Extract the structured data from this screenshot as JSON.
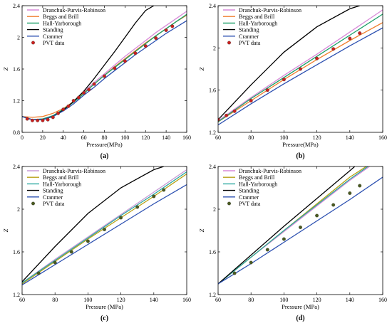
{
  "chart_data": [
    {
      "type": "line",
      "label": "(a)",
      "xlabel": "Pressure(MPa)",
      "ylabel": "Z",
      "xlim": [
        0,
        160
      ],
      "ylim": [
        0.8,
        2.4
      ],
      "xticks": [
        0,
        20,
        40,
        60,
        80,
        100,
        120,
        140,
        160
      ],
      "yticks": [
        0.8,
        1.2,
        1.6,
        2.0,
        2.4
      ],
      "ytick_labels": [
        "0.8",
        "1.2",
        "1.6",
        "2",
        "2.4"
      ],
      "legend": "top-left",
      "grid": false,
      "series": [
        {
          "name": "Dranchuk-Purvis-Robinson",
          "color": "#d98ad9",
          "x": [
            0,
            10,
            20,
            30,
            40,
            50,
            60,
            70,
            80,
            90,
            100,
            110,
            120,
            130,
            140,
            150,
            160
          ],
          "y": [
            1.0,
            0.96,
            0.97,
            1.01,
            1.09,
            1.19,
            1.31,
            1.43,
            1.54,
            1.65,
            1.76,
            1.86,
            1.96,
            2.06,
            2.15,
            2.24,
            2.33
          ]
        },
        {
          "name": "Beggs and Brill",
          "color": "#f07e2e",
          "x": [
            0,
            10,
            20,
            30,
            40,
            50,
            60,
            70,
            80,
            90,
            100,
            110,
            120,
            130,
            140,
            150,
            160
          ],
          "y": [
            1.0,
            0.99,
            1.0,
            1.04,
            1.1,
            1.19,
            1.3,
            1.41,
            1.52,
            1.63,
            1.73,
            1.83,
            1.93,
            2.02,
            2.11,
            2.2,
            2.28
          ]
        },
        {
          "name": "Hall-Yarborough",
          "color": "#1a9e66",
          "x": [
            0,
            10,
            20,
            30,
            40,
            50,
            60,
            70,
            80,
            90,
            100,
            110,
            120,
            130,
            140,
            150,
            160
          ],
          "y": [
            1.0,
            0.96,
            0.97,
            1.01,
            1.09,
            1.18,
            1.29,
            1.41,
            1.52,
            1.62,
            1.72,
            1.82,
            1.92,
            2.02,
            2.11,
            2.2,
            2.29
          ]
        },
        {
          "name": "Standing",
          "color": "#000000",
          "x": [
            0,
            10,
            20,
            30,
            40,
            50,
            60,
            70,
            80,
            90,
            100,
            110,
            120,
            128
          ],
          "y": [
            1.0,
            0.96,
            0.96,
            1.0,
            1.08,
            1.19,
            1.32,
            1.48,
            1.65,
            1.82,
            2.0,
            2.18,
            2.34,
            2.4
          ]
        },
        {
          "name": "Cranmer",
          "color": "#2b4fb0",
          "x": [
            0,
            10,
            20,
            30,
            40,
            50,
            60,
            70,
            80,
            90,
            100,
            110,
            120,
            130,
            140,
            150,
            160
          ],
          "y": [
            1.0,
            0.96,
            0.96,
            1.0,
            1.07,
            1.16,
            1.27,
            1.37,
            1.48,
            1.58,
            1.68,
            1.78,
            1.87,
            1.96,
            2.05,
            2.13,
            2.21
          ]
        }
      ],
      "points": {
        "name": "PVT data",
        "color": "#c8201e",
        "x": [
          5,
          10,
          15,
          20,
          25,
          30,
          35,
          40,
          45,
          50,
          55,
          60,
          65,
          70,
          80,
          90,
          100,
          110,
          120,
          130,
          140,
          146
        ],
        "y": [
          0.97,
          0.95,
          0.95,
          0.95,
          0.96,
          0.99,
          1.04,
          1.09,
          1.13,
          1.2,
          1.24,
          1.3,
          1.34,
          1.41,
          1.51,
          1.61,
          1.7,
          1.8,
          1.89,
          1.99,
          2.09,
          2.14
        ]
      }
    },
    {
      "type": "line",
      "label": "(b)",
      "xlabel": "Pressure(MPa)",
      "ylabel": "Z",
      "xlim": [
        60,
        160
      ],
      "ylim": [
        1.2,
        2.4
      ],
      "xticks": [
        60,
        80,
        100,
        120,
        140,
        160
      ],
      "yticks": [
        1.2,
        1.6,
        2.0,
        2.4
      ],
      "ytick_labels": [
        "1.2",
        "1.6",
        "2",
        "2.4"
      ],
      "legend": "top-left",
      "grid": false,
      "series": [
        {
          "name": "Dranchuk-Purvis-Robinson",
          "color": "#d98ad9",
          "x": [
            60,
            80,
            100,
            120,
            140,
            160
          ],
          "y": [
            1.31,
            1.53,
            1.74,
            1.94,
            2.15,
            2.36
          ]
        },
        {
          "name": "Beggs and Brill",
          "color": "#f07e2e",
          "x": [
            60,
            80,
            100,
            120,
            140,
            160
          ],
          "y": [
            1.3,
            1.5,
            1.7,
            1.89,
            2.07,
            2.24
          ]
        },
        {
          "name": "Hall-Yarborough",
          "color": "#1a9e66",
          "x": [
            60,
            80,
            100,
            120,
            140,
            160
          ],
          "y": [
            1.3,
            1.52,
            1.72,
            1.92,
            2.12,
            2.32
          ]
        },
        {
          "name": "Standing",
          "color": "#000000",
          "x": [
            60,
            80,
            100,
            120,
            140,
            146
          ],
          "y": [
            1.32,
            1.65,
            1.96,
            2.2,
            2.37,
            2.4
          ]
        },
        {
          "name": "Cranmer",
          "color": "#2b4fb0",
          "x": [
            60,
            80,
            100,
            120,
            140,
            160
          ],
          "y": [
            1.27,
            1.47,
            1.66,
            1.84,
            2.02,
            2.19
          ]
        }
      ],
      "points": {
        "name": "PVT data",
        "color": "#c8201e",
        "x": [
          60,
          65,
          70,
          80,
          90,
          100,
          110,
          120,
          130,
          140,
          146
        ],
        "y": [
          1.32,
          1.36,
          1.4,
          1.5,
          1.6,
          1.7,
          1.8,
          1.9,
          1.99,
          2.09,
          2.14
        ]
      }
    },
    {
      "type": "line",
      "label": "(c)",
      "xlabel": "Pressure (MPa)",
      "ylabel": "Z",
      "xlim": [
        60,
        160
      ],
      "ylim": [
        1.2,
        2.4
      ],
      "xticks": [
        60,
        80,
        100,
        120,
        140,
        160
      ],
      "yticks": [
        1.2,
        1.6,
        2.0,
        2.4
      ],
      "ytick_labels": [
        "1.2",
        "1.6",
        "2",
        "2.4"
      ],
      "legend": "top-left",
      "grid": false,
      "series": [
        {
          "name": "Dranchuk-Purvis-Robinson",
          "color": "#c79ad6",
          "x": [
            60,
            80,
            100,
            120,
            140,
            160
          ],
          "y": [
            1.31,
            1.53,
            1.74,
            1.95,
            2.16,
            2.37
          ]
        },
        {
          "name": "Beggs and Brill",
          "color": "#b8a014",
          "x": [
            60,
            80,
            100,
            120,
            140,
            160
          ],
          "y": [
            1.3,
            1.51,
            1.72,
            1.92,
            2.12,
            2.33
          ]
        },
        {
          "name": "Hall-Yarborough",
          "color": "#2aa8a0",
          "x": [
            60,
            80,
            100,
            120,
            140,
            160
          ],
          "y": [
            1.31,
            1.52,
            1.73,
            1.94,
            2.14,
            2.35
          ]
        },
        {
          "name": "Standing",
          "color": "#000000",
          "x": [
            60,
            80,
            100,
            120,
            140,
            146
          ],
          "y": [
            1.32,
            1.65,
            1.96,
            2.2,
            2.37,
            2.4
          ]
        },
        {
          "name": "Cranmer",
          "color": "#2b4fb0",
          "x": [
            60,
            80,
            100,
            120,
            140,
            160
          ],
          "y": [
            1.29,
            1.48,
            1.67,
            1.86,
            2.05,
            2.23
          ]
        }
      ],
      "points": {
        "name": "PVT data",
        "color": "#4a5a20",
        "x": [
          70,
          80,
          90,
          100,
          110,
          120,
          130,
          140,
          146
        ],
        "y": [
          1.4,
          1.5,
          1.6,
          1.7,
          1.81,
          1.92,
          2.02,
          2.12,
          2.18
        ]
      }
    },
    {
      "type": "line",
      "label": "(d)",
      "xlabel": "Pressure (MPa)",
      "ylabel": "Z",
      "xlim": [
        60,
        160
      ],
      "ylim": [
        1.2,
        2.4
      ],
      "xticks": [
        60,
        80,
        100,
        120,
        140,
        160
      ],
      "yticks": [
        1.2,
        1.6,
        2.0,
        2.4
      ],
      "ytick_labels": [
        "1.2",
        "1.6",
        "2",
        "2.4"
      ],
      "legend": "top-left",
      "grid": false,
      "series": [
        {
          "name": "Dranchuk-Purvis-Robinson",
          "color": "#d98ad9",
          "x": [
            60,
            80,
            100,
            120,
            140,
            152
          ],
          "y": [
            1.3,
            1.55,
            1.79,
            2.03,
            2.27,
            2.4
          ]
        },
        {
          "name": "Beggs and Brill",
          "color": "#b8a014",
          "x": [
            60,
            80,
            100,
            120,
            140,
            150
          ],
          "y": [
            1.3,
            1.55,
            1.8,
            2.05,
            2.3,
            2.4
          ]
        },
        {
          "name": "Hall-Yarborough",
          "color": "#2aa8a0",
          "x": [
            60,
            80,
            100,
            120,
            140,
            151
          ],
          "y": [
            1.3,
            1.55,
            1.8,
            2.04,
            2.28,
            2.4
          ]
        },
        {
          "name": "Standing",
          "color": "#000000",
          "x": [
            60,
            80,
            100,
            120,
            140,
            143
          ],
          "y": [
            1.3,
            1.57,
            1.84,
            2.1,
            2.36,
            2.4
          ]
        },
        {
          "name": "Cranmer",
          "color": "#2b4fb0",
          "x": [
            60,
            80,
            100,
            120,
            140,
            160
          ],
          "y": [
            1.3,
            1.49,
            1.69,
            1.89,
            2.09,
            2.3
          ]
        }
      ],
      "points": {
        "name": "PVT data",
        "color": "#4a5a20",
        "x": [
          70,
          80,
          90,
          100,
          110,
          120,
          130,
          140,
          146
        ],
        "y": [
          1.4,
          1.5,
          1.62,
          1.72,
          1.83,
          1.94,
          2.04,
          2.15,
          2.22
        ]
      }
    }
  ]
}
